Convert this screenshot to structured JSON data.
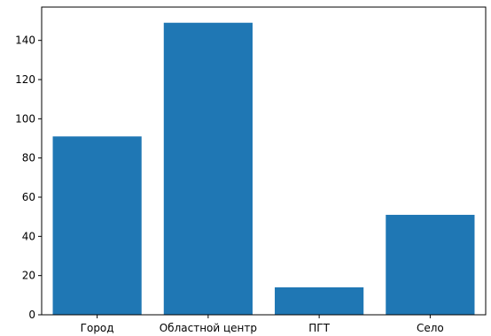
{
  "chart_data": {
    "type": "bar",
    "categories": [
      "Город",
      "Областной центр",
      "ПГТ",
      "Село"
    ],
    "values": [
      91,
      149,
      14,
      51
    ],
    "ylim": [
      0,
      157
    ],
    "y_ticks": [
      0,
      20,
      40,
      60,
      80,
      100,
      120,
      140
    ],
    "title": "",
    "xlabel": "",
    "ylabel": "",
    "grid": false,
    "legend": "none",
    "bar_color": "#1f77b4",
    "axis_color": "#000000"
  }
}
